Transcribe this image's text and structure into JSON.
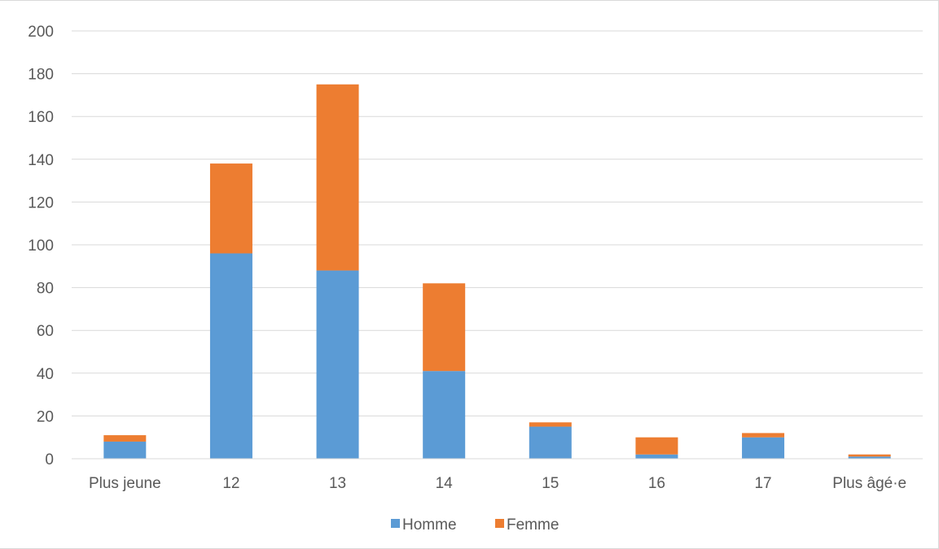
{
  "chart_data": {
    "type": "bar",
    "stacked": true,
    "categories": [
      "Plus jeune",
      "12",
      "13",
      "14",
      "15",
      "16",
      "17",
      "Plus âgé·e"
    ],
    "series": [
      {
        "name": "Homme",
        "color": "#5b9bd5",
        "values": [
          8,
          96,
          88,
          41,
          15,
          2,
          10,
          1
        ]
      },
      {
        "name": "Femme",
        "color": "#ed7d31",
        "values": [
          3,
          42,
          87,
          41,
          2,
          8,
          2,
          1
        ]
      }
    ],
    "ylim": [
      0,
      200
    ],
    "yticks": [
      0,
      20,
      40,
      60,
      80,
      100,
      120,
      140,
      160,
      180,
      200
    ],
    "grid": true,
    "legend": "bottom",
    "title": "",
    "xlabel": "",
    "ylabel": ""
  }
}
